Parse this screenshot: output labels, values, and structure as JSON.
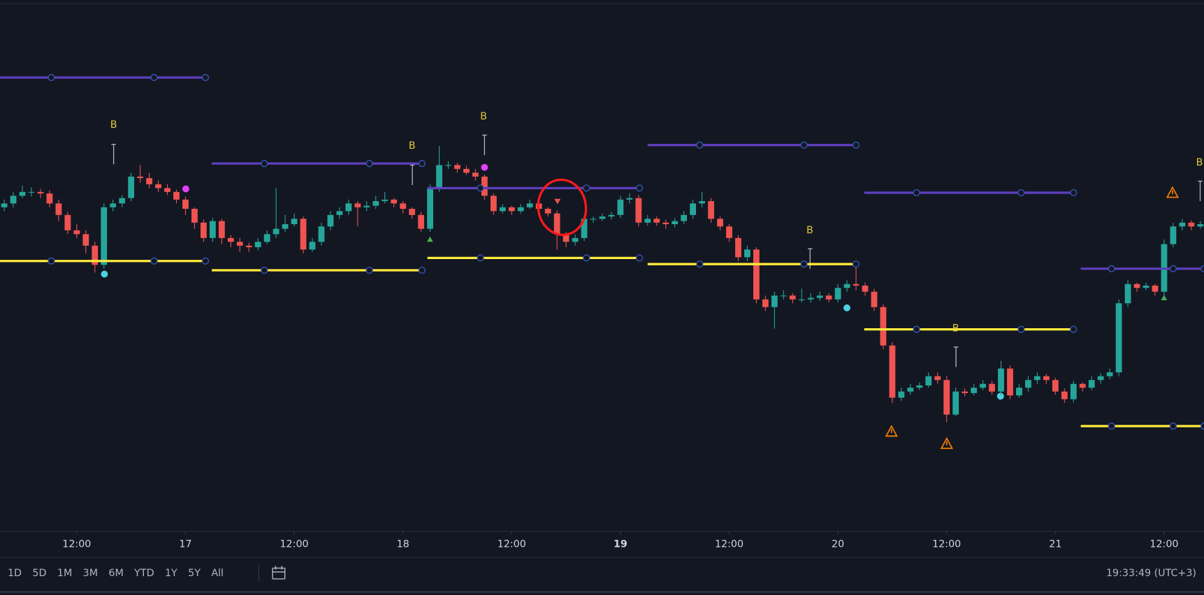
{
  "chart_data": {
    "type": "candlestick",
    "up_color": "#26a69a",
    "down_color": "#ef5350",
    "x": [
      -8,
      -7,
      -6,
      -5,
      -4,
      -3,
      -2,
      -1,
      0,
      1,
      2,
      3,
      4,
      5,
      6,
      7,
      8,
      9,
      10,
      11,
      12,
      13,
      14,
      15,
      16,
      17,
      18,
      19,
      20,
      21,
      22,
      23,
      24,
      25,
      26,
      27,
      28,
      29,
      30,
      31,
      32,
      33,
      34,
      35,
      36,
      37,
      38,
      39,
      40,
      41,
      42,
      43,
      44,
      45,
      46,
      47,
      48,
      49,
      50,
      51,
      52,
      53,
      54,
      55,
      56,
      57,
      58,
      59,
      60,
      61,
      62,
      63,
      64,
      65,
      66,
      67,
      68,
      69,
      70,
      71,
      72,
      73,
      74,
      75,
      76,
      77,
      78,
      79,
      80,
      81,
      82,
      83,
      84,
      85,
      86,
      87,
      88,
      89,
      90,
      91,
      92,
      93,
      94,
      95,
      96,
      97,
      98,
      99,
      100,
      101,
      102,
      103,
      104,
      105,
      106,
      107,
      108,
      109,
      110,
      111,
      112,
      113,
      114,
      115,
      116,
      117,
      118,
      119,
      120,
      121,
      122,
      123,
      124
    ],
    "ohlc": [
      [
        420,
        430,
        415,
        425
      ],
      [
        425,
        440,
        420,
        435
      ],
      [
        435,
        448,
        432,
        440
      ],
      [
        440,
        446,
        434,
        440
      ],
      [
        440,
        444,
        432,
        438
      ],
      [
        438,
        442,
        420,
        425
      ],
      [
        425,
        430,
        402,
        410
      ],
      [
        410,
        414,
        385,
        390
      ],
      [
        390,
        398,
        380,
        385
      ],
      [
        385,
        390,
        360,
        370
      ],
      [
        370,
        375,
        335,
        345
      ],
      [
        345,
        425,
        340,
        420
      ],
      [
        420,
        430,
        415,
        425
      ],
      [
        425,
        436,
        420,
        432
      ],
      [
        432,
        465,
        428,
        460
      ],
      [
        460,
        475,
        452,
        458
      ],
      [
        458,
        465,
        445,
        450
      ],
      [
        450,
        455,
        440,
        445
      ],
      [
        445,
        450,
        436,
        440
      ],
      [
        440,
        443,
        425,
        430
      ],
      [
        430,
        434,
        410,
        418
      ],
      [
        418,
        420,
        392,
        400
      ],
      [
        400,
        404,
        375,
        380
      ],
      [
        380,
        406,
        375,
        402
      ],
      [
        402,
        405,
        372,
        380
      ],
      [
        380,
        384,
        368,
        375
      ],
      [
        375,
        380,
        362,
        370
      ],
      [
        370,
        374,
        362,
        368
      ],
      [
        368,
        380,
        364,
        375
      ],
      [
        375,
        390,
        372,
        385
      ],
      [
        385,
        445,
        380,
        392
      ],
      [
        392,
        410,
        388,
        398
      ],
      [
        398,
        412,
        395,
        405
      ],
      [
        405,
        408,
        360,
        365
      ],
      [
        365,
        380,
        362,
        375
      ],
      [
        375,
        400,
        370,
        395
      ],
      [
        395,
        415,
        390,
        410
      ],
      [
        410,
        420,
        405,
        415
      ],
      [
        415,
        430,
        410,
        425
      ],
      [
        425,
        428,
        395,
        420
      ],
      [
        420,
        428,
        415,
        422
      ],
      [
        422,
        435,
        418,
        428
      ],
      [
        428,
        440,
        425,
        430
      ],
      [
        430,
        432,
        420,
        425
      ],
      [
        425,
        428,
        412,
        418
      ],
      [
        418,
        420,
        405,
        410
      ],
      [
        410,
        414,
        388,
        392
      ],
      [
        392,
        450,
        388,
        445
      ],
      [
        445,
        500,
        440,
        475
      ],
      [
        475,
        480,
        470,
        475
      ],
      [
        475,
        478,
        465,
        470
      ],
      [
        470,
        474,
        462,
        465
      ],
      [
        465,
        470,
        455,
        460
      ],
      [
        460,
        463,
        430,
        435
      ],
      [
        435,
        438,
        410,
        415
      ],
      [
        415,
        424,
        412,
        420
      ],
      [
        420,
        422,
        410,
        415
      ],
      [
        415,
        424,
        412,
        420
      ],
      [
        420,
        430,
        418,
        425
      ],
      [
        425,
        427,
        414,
        418
      ],
      [
        418,
        420,
        408,
        412
      ],
      [
        412,
        416,
        365,
        385
      ],
      [
        385,
        388,
        368,
        375
      ],
      [
        375,
        385,
        370,
        380
      ],
      [
        380,
        410,
        376,
        405
      ],
      [
        405,
        408,
        400,
        405
      ],
      [
        405,
        412,
        402,
        408
      ],
      [
        408,
        414,
        404,
        410
      ],
      [
        410,
        435,
        406,
        430
      ],
      [
        430,
        438,
        425,
        432
      ],
      [
        432,
        436,
        395,
        400
      ],
      [
        400,
        410,
        396,
        405
      ],
      [
        405,
        408,
        396,
        400
      ],
      [
        400,
        404,
        392,
        398
      ],
      [
        398,
        406,
        394,
        402
      ],
      [
        402,
        415,
        398,
        410
      ],
      [
        410,
        430,
        405,
        425
      ],
      [
        425,
        440,
        420,
        428
      ],
      [
        428,
        432,
        400,
        405
      ],
      [
        405,
        408,
        390,
        395
      ],
      [
        395,
        398,
        375,
        380
      ],
      [
        380,
        384,
        350,
        355
      ],
      [
        355,
        370,
        350,
        365
      ],
      [
        365,
        368,
        295,
        300
      ],
      [
        300,
        305,
        285,
        290
      ],
      [
        290,
        310,
        262,
        305
      ],
      [
        305,
        312,
        300,
        305
      ],
      [
        305,
        308,
        295,
        300
      ],
      [
        300,
        314,
        296,
        300
      ],
      [
        300,
        308,
        296,
        302
      ],
      [
        302,
        310,
        298,
        305
      ],
      [
        305,
        308,
        296,
        300
      ],
      [
        300,
        320,
        296,
        315
      ],
      [
        315,
        325,
        310,
        320
      ],
      [
        320,
        345,
        312,
        318
      ],
      [
        318,
        322,
        305,
        310
      ],
      [
        310,
        314,
        285,
        290
      ],
      [
        290,
        294,
        235,
        240
      ],
      [
        240,
        244,
        165,
        172
      ],
      [
        172,
        185,
        168,
        180
      ],
      [
        180,
        190,
        176,
        185
      ],
      [
        185,
        192,
        182,
        188
      ],
      [
        188,
        205,
        185,
        200
      ],
      [
        200,
        205,
        190,
        195
      ],
      [
        195,
        200,
        140,
        150
      ],
      [
        150,
        185,
        148,
        180
      ],
      [
        180,
        184,
        174,
        178
      ],
      [
        178,
        190,
        175,
        185
      ],
      [
        185,
        195,
        182,
        190
      ],
      [
        190,
        194,
        176,
        180
      ],
      [
        180,
        220,
        175,
        210
      ],
      [
        210,
        214,
        170,
        175
      ],
      [
        175,
        190,
        172,
        185
      ],
      [
        185,
        200,
        180,
        195
      ],
      [
        195,
        205,
        190,
        200
      ],
      [
        200,
        203,
        190,
        195
      ],
      [
        195,
        198,
        176,
        180
      ],
      [
        180,
        184,
        165,
        170
      ],
      [
        170,
        194,
        166,
        190
      ],
      [
        190,
        192,
        180,
        185
      ],
      [
        185,
        200,
        182,
        195
      ],
      [
        195,
        204,
        190,
        200
      ],
      [
        200,
        210,
        196,
        205
      ],
      [
        205,
        300,
        200,
        295
      ],
      [
        295,
        325,
        290,
        320
      ],
      [
        320,
        322,
        310,
        315
      ],
      [
        315,
        322,
        312,
        318
      ],
      [
        318,
        320,
        305,
        310
      ],
      [
        310,
        378,
        300,
        372
      ],
      [
        372,
        400,
        368,
        395
      ],
      [
        395,
        405,
        390,
        400
      ],
      [
        400,
        403,
        390,
        395
      ],
      [
        395,
        402,
        392,
        398
      ]
    ],
    "levels": [
      {
        "color": "#5e3fbf",
        "x": [
          -8.47,
          14.2
        ],
        "value": 589
      },
      {
        "color": "#5e3fbf",
        "x": [
          14.9,
          38.1
        ],
        "value": 477
      },
      {
        "color": "#5e3fbf",
        "x": [
          38.7,
          62.1
        ],
        "value": 445
      },
      {
        "color": "#5e3fbf",
        "x": [
          63.0,
          86.0
        ],
        "value": 501
      },
      {
        "color": "#5e3fbf",
        "x": [
          86.9,
          110.0
        ],
        "value": 439
      },
      {
        "color": "#5e3fbf",
        "x": [
          110.8,
          124.4
        ],
        "value": 340
      },
      {
        "color": "#ffeb3b",
        "x": [
          -8.47,
          14.2
        ],
        "value": 350
      },
      {
        "color": "#ffeb3b",
        "x": [
          14.9,
          38.1
        ],
        "value": 338
      },
      {
        "color": "#ffeb3b",
        "x": [
          38.7,
          62.1
        ],
        "value": 354
      },
      {
        "color": "#ffeb3b",
        "x": [
          63.0,
          86.0
        ],
        "value": 346
      },
      {
        "color": "#ffeb3b",
        "x": [
          86.9,
          110.0
        ],
        "value": 261
      },
      {
        "color": "#ffeb3b",
        "x": [
          110.8,
          124.4
        ],
        "value": 135
      }
    ],
    "annotations": [
      {
        "text": "B",
        "x": 4.07,
        "y": 527
      },
      {
        "text": "B",
        "x": 37,
        "y": 500
      },
      {
        "text": "B",
        "x": 44.9,
        "y": 538
      },
      {
        "text": "B",
        "x": 80.9,
        "y": 390
      },
      {
        "text": "B",
        "x": 97,
        "y": 262
      },
      {
        "text": "B",
        "x": 123.9,
        "y": 478
      }
    ],
    "xlim": [
      -8.47,
      124.4
    ],
    "ylim": [
      0,
      690
    ],
    "xticks": [
      {
        "value": 0,
        "label": "12:00"
      },
      {
        "value": 12,
        "label": "17"
      },
      {
        "value": 24,
        "label": "12:00"
      },
      {
        "value": 36,
        "label": "18"
      },
      {
        "value": 48,
        "label": "12:00"
      },
      {
        "value": 60,
        "label": "19"
      },
      {
        "value": 72,
        "label": "12:00"
      },
      {
        "value": 84,
        "label": "20"
      },
      {
        "value": 96,
        "label": "12:00"
      },
      {
        "value": 108,
        "label": "21"
      },
      {
        "value": 120,
        "label": "12:00"
      }
    ]
  },
  "toolbar": {
    "ranges": [
      "1D",
      "5D",
      "1M",
      "3M",
      "6M",
      "YTD",
      "1Y",
      "5Y",
      "All"
    ],
    "clock": "19:33:49 (UTC+3)"
  }
}
